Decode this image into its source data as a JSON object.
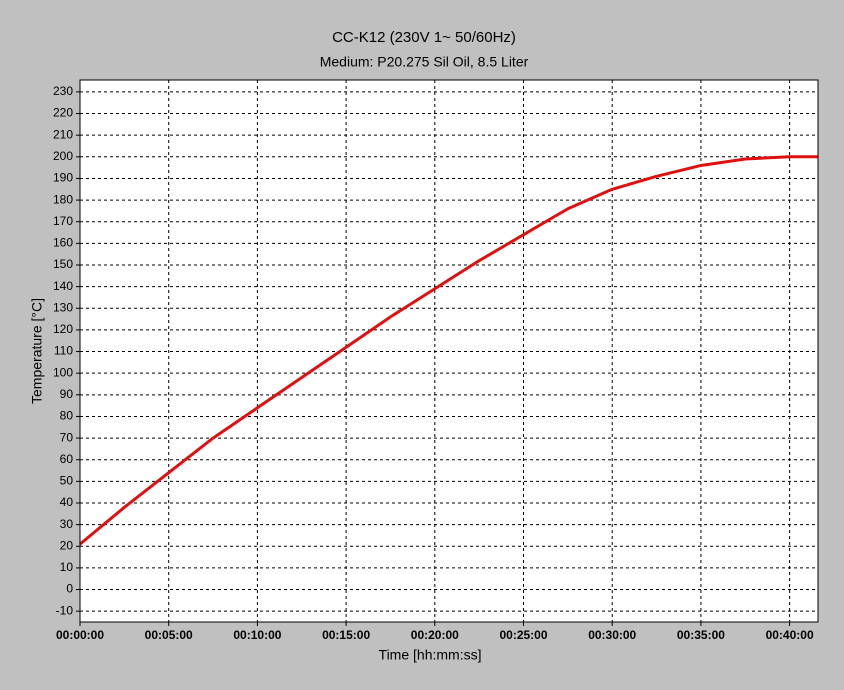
{
  "chart_data": {
    "type": "line",
    "title": "CC-K12 (230V 1~ 50/60Hz)",
    "subtitle": "Medium: P20.275 Sil Oil, 8.5 Liter",
    "x_label": "Time [hh:mm:ss]",
    "y_label": "Temperature [°C]",
    "x": [
      0,
      2.5,
      5,
      7.5,
      10,
      12.5,
      15,
      17.5,
      20,
      22.5,
      25,
      27.5,
      30,
      32.5,
      35,
      37.5,
      40,
      41.6
    ],
    "series": [
      {
        "name": "Temperature",
        "color": "#e01010",
        "values": [
          21,
          38,
          54,
          70,
          84,
          98,
          112,
          126,
          139,
          152,
          164,
          176,
          185,
          191,
          196,
          199,
          200,
          200
        ]
      }
    ],
    "xlim": [
      0,
      41.6
    ],
    "xticks": [
      {
        "value": 0,
        "label": "00:00:00"
      },
      {
        "value": 5,
        "label": "00:05:00"
      },
      {
        "value": 10,
        "label": "00:10:00"
      },
      {
        "value": 15,
        "label": "00:15:00"
      },
      {
        "value": 20,
        "label": "00:20:00"
      },
      {
        "value": 25,
        "label": "00:25:00"
      },
      {
        "value": 30,
        "label": "00:30:00"
      },
      {
        "value": 35,
        "label": "00:35:00"
      },
      {
        "value": 40,
        "label": "00:40:00"
      }
    ],
    "ylim": [
      -15,
      235.5
    ],
    "yticks": [
      -10,
      0,
      10,
      20,
      30,
      40,
      50,
      60,
      70,
      80,
      90,
      100,
      110,
      120,
      130,
      140,
      150,
      160,
      170,
      180,
      190,
      200,
      210,
      220,
      230
    ],
    "grid": true
  }
}
